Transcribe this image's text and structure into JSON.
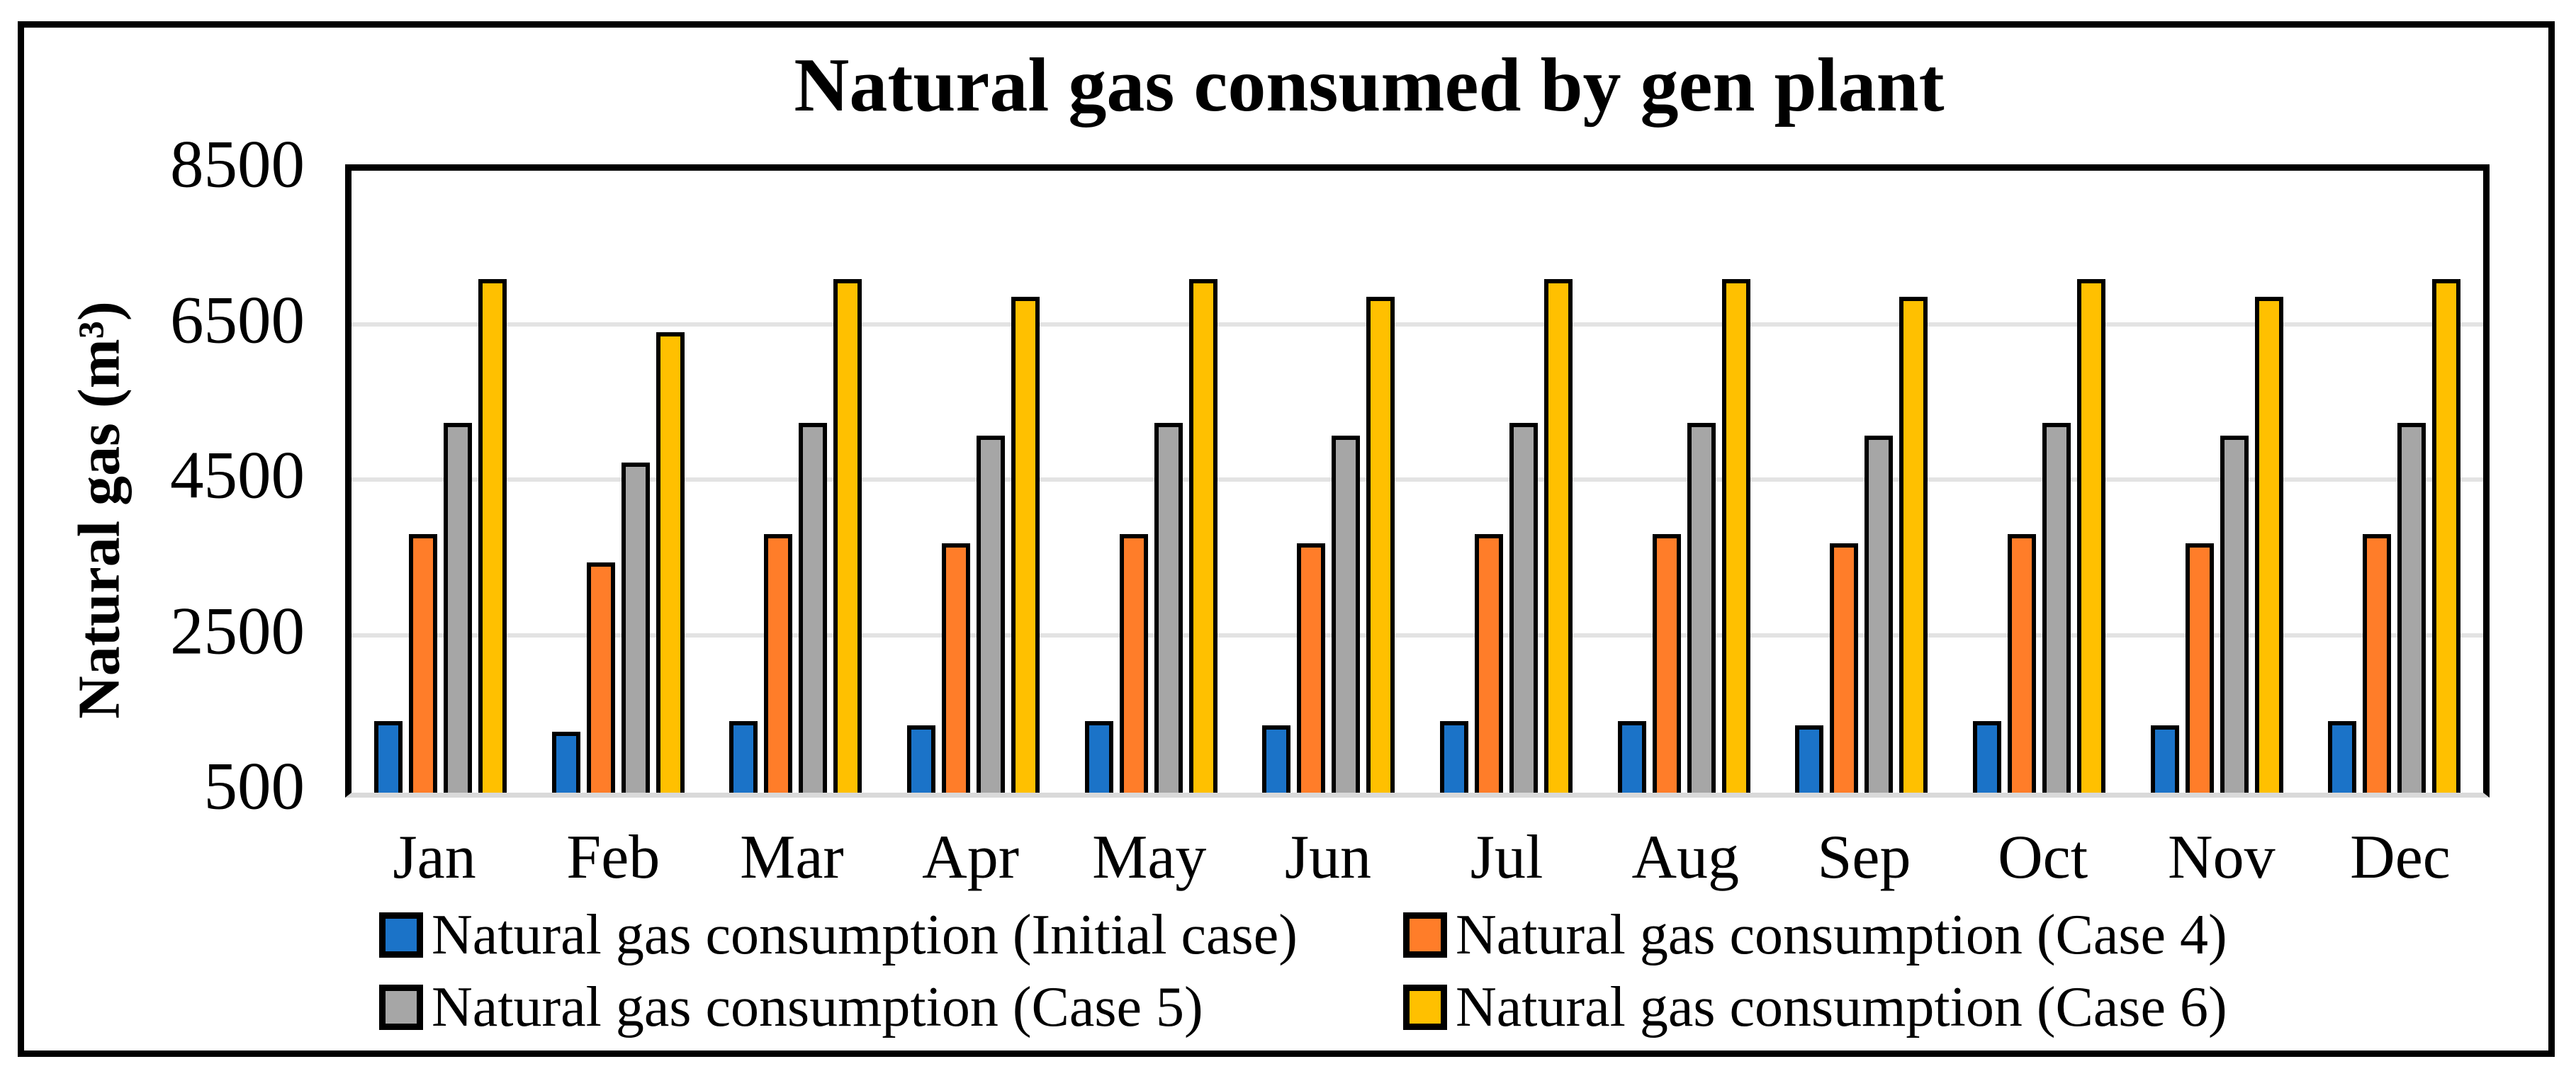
{
  "figure": {
    "title": "Natural gas consumed by gen plant"
  },
  "chart_data": {
    "type": "bar",
    "title": "Natural gas consumed by gen plant",
    "xlabel": "",
    "ylabel": "Natural gas (m³)",
    "ylim": [
      500,
      8500
    ],
    "yticks": [
      8500,
      6500,
      4500,
      2500,
      500
    ],
    "grid": true,
    "gridline_values": [
      6500,
      4500,
      2500
    ],
    "legend_position": "bottom",
    "categories": [
      "Jan",
      "Feb",
      "Mar",
      "Apr",
      "May",
      "Jun",
      "Jul",
      "Aug",
      "Sep",
      "Oct",
      "Nov",
      "Dec"
    ],
    "series": [
      {
        "name": "Natural gas consumption (Initial case)",
        "color": "#1B73C8",
        "values": [
          1420,
          1280,
          1420,
          1370,
          1420,
          1370,
          1420,
          1420,
          1370,
          1420,
          1370,
          1420
        ]
      },
      {
        "name": "Natural gas consumption (Case 4)",
        "color": "#FF7D29",
        "values": [
          3830,
          3460,
          3830,
          3710,
          3830,
          3710,
          3830,
          3830,
          3710,
          3830,
          3710,
          3830
        ]
      },
      {
        "name": "Natural gas consumption (Case 5)",
        "color": "#A6A6A6",
        "values": [
          5260,
          4750,
          5260,
          5090,
          5260,
          5090,
          5260,
          5260,
          5090,
          5260,
          5090,
          5260
        ]
      },
      {
        "name": "Natural gas consumption (Case 6)",
        "color": "#FFC000",
        "values": [
          7110,
          6420,
          7110,
          6880,
          7110,
          6880,
          7110,
          7110,
          6880,
          7110,
          6880,
          7110
        ]
      }
    ],
    "colors": {
      "grid": "#E3E3E3",
      "axis_bottom": "#D9D9D9",
      "bar_border": "#000000",
      "frame": "#000000",
      "background": "#FFFFFF"
    }
  }
}
